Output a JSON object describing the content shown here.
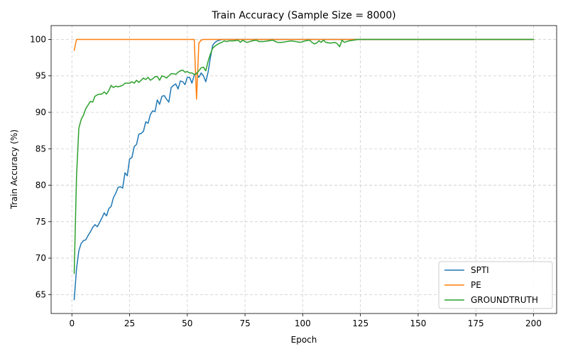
{
  "chart_data": {
    "type": "line",
    "title": "Train Accuracy (Sample Size = 8000)",
    "xlabel": "Epoch",
    "ylabel": "Train Accuracy (%)",
    "xlim": [
      -9,
      210
    ],
    "ylim": [
      62.4,
      101.9
    ],
    "xticks": [
      0,
      25,
      50,
      75,
      100,
      125,
      150,
      175,
      200
    ],
    "yticks": [
      65,
      70,
      75,
      80,
      85,
      90,
      95,
      100
    ],
    "grid": true,
    "legend_position": "lower-right",
    "series": [
      {
        "name": "SPTI",
        "color": "#1f77b4",
        "points": [
          [
            1,
            64.3
          ],
          [
            2,
            68.5
          ],
          [
            3,
            71.0
          ],
          [
            4,
            72.0
          ],
          [
            5,
            72.4
          ],
          [
            6,
            72.5
          ],
          [
            7,
            73.1
          ],
          [
            8,
            73.6
          ],
          [
            9,
            74.2
          ],
          [
            10,
            74.6
          ],
          [
            11,
            74.3
          ],
          [
            12,
            74.9
          ],
          [
            13,
            75.5
          ],
          [
            14,
            76.2
          ],
          [
            15,
            75.8
          ],
          [
            16,
            76.8
          ],
          [
            17,
            77.1
          ],
          [
            18,
            78.3
          ],
          [
            19,
            78.9
          ],
          [
            20,
            79.7
          ],
          [
            21,
            79.8
          ],
          [
            22,
            79.6
          ],
          [
            23,
            81.7
          ],
          [
            24,
            81.3
          ],
          [
            25,
            83.6
          ],
          [
            26,
            83.8
          ],
          [
            27,
            85.3
          ],
          [
            28,
            85.6
          ],
          [
            29,
            87.0
          ],
          [
            30,
            87.1
          ],
          [
            31,
            87.4
          ],
          [
            32,
            88.7
          ],
          [
            33,
            88.5
          ],
          [
            34,
            89.7
          ],
          [
            35,
            90.2
          ],
          [
            36,
            90.1
          ],
          [
            37,
            91.7
          ],
          [
            38,
            91.1
          ],
          [
            39,
            92.2
          ],
          [
            40,
            92.3
          ],
          [
            41,
            91.8
          ],
          [
            42,
            91.4
          ],
          [
            43,
            93.4
          ],
          [
            44,
            93.7
          ],
          [
            45,
            93.9
          ],
          [
            46,
            93.2
          ],
          [
            47,
            94.3
          ],
          [
            48,
            94.2
          ],
          [
            49,
            93.8
          ],
          [
            50,
            94.8
          ],
          [
            51,
            94.8
          ],
          [
            52,
            94.0
          ],
          [
            53,
            95.1
          ],
          [
            54,
            95.4
          ],
          [
            55,
            94.8
          ],
          [
            56,
            95.4
          ],
          [
            57,
            95.0
          ],
          [
            58,
            94.2
          ],
          [
            59,
            95.5
          ],
          [
            60,
            97.5
          ],
          [
            61,
            99.2
          ],
          [
            62,
            99.6
          ],
          [
            63,
            99.8
          ],
          [
            64,
            99.9
          ],
          [
            65,
            100.0
          ],
          [
            70,
            100.0
          ],
          [
            80,
            100.0
          ],
          [
            90,
            100.0
          ],
          [
            100,
            100.0
          ],
          [
            110,
            100.0
          ],
          [
            120,
            100.0
          ],
          [
            130,
            100.0
          ],
          [
            140,
            100.0
          ],
          [
            150,
            100.0
          ],
          [
            160,
            100.0
          ],
          [
            170,
            100.0
          ],
          [
            180,
            100.0
          ],
          [
            190,
            100.0
          ],
          [
            200,
            100.0
          ]
        ]
      },
      {
        "name": "PE",
        "color": "#ff7f0e",
        "points": [
          [
            1,
            98.5
          ],
          [
            2,
            100.0
          ],
          [
            10,
            100.0
          ],
          [
            20,
            100.0
          ],
          [
            30,
            100.0
          ],
          [
            40,
            100.0
          ],
          [
            50,
            100.0
          ],
          [
            53,
            100.0
          ],
          [
            54,
            91.8
          ],
          [
            55,
            99.5
          ],
          [
            56,
            99.9
          ],
          [
            57,
            100.0
          ],
          [
            60,
            100.0
          ],
          [
            70,
            100.0
          ],
          [
            80,
            100.0
          ],
          [
            90,
            100.0
          ],
          [
            100,
            100.0
          ],
          [
            110,
            100.0
          ],
          [
            120,
            100.0
          ],
          [
            130,
            100.0
          ],
          [
            140,
            100.0
          ],
          [
            150,
            100.0
          ],
          [
            160,
            100.0
          ],
          [
            170,
            100.0
          ],
          [
            180,
            100.0
          ],
          [
            190,
            100.0
          ],
          [
            200,
            100.0
          ]
        ]
      },
      {
        "name": "GROUNDTRUTH",
        "color": "#2ca02c",
        "points": [
          [
            1,
            67.9
          ],
          [
            2,
            81.2
          ],
          [
            3,
            87.8
          ],
          [
            4,
            89.0
          ],
          [
            5,
            89.6
          ],
          [
            6,
            90.5
          ],
          [
            7,
            91.0
          ],
          [
            8,
            91.5
          ],
          [
            9,
            91.4
          ],
          [
            10,
            92.2
          ],
          [
            11,
            92.4
          ],
          [
            12,
            92.5
          ],
          [
            13,
            92.5
          ],
          [
            14,
            92.8
          ],
          [
            15,
            92.5
          ],
          [
            16,
            93.0
          ],
          [
            17,
            93.7
          ],
          [
            18,
            93.4
          ],
          [
            19,
            93.6
          ],
          [
            20,
            93.5
          ],
          [
            21,
            93.6
          ],
          [
            22,
            93.7
          ],
          [
            23,
            94.0
          ],
          [
            24,
            94.0
          ],
          [
            25,
            94.0
          ],
          [
            26,
            94.2
          ],
          [
            27,
            94.0
          ],
          [
            28,
            94.4
          ],
          [
            29,
            94.1
          ],
          [
            30,
            94.4
          ],
          [
            31,
            94.7
          ],
          [
            32,
            94.5
          ],
          [
            33,
            94.8
          ],
          [
            34,
            94.4
          ],
          [
            35,
            94.6
          ],
          [
            36,
            94.9
          ],
          [
            37,
            94.9
          ],
          [
            38,
            94.4
          ],
          [
            39,
            95.0
          ],
          [
            40,
            94.9
          ],
          [
            41,
            94.7
          ],
          [
            42,
            95.0
          ],
          [
            43,
            95.3
          ],
          [
            44,
            95.3
          ],
          [
            45,
            95.2
          ],
          [
            46,
            95.5
          ],
          [
            47,
            95.7
          ],
          [
            48,
            95.8
          ],
          [
            49,
            95.5
          ],
          [
            50,
            95.6
          ],
          [
            51,
            95.4
          ],
          [
            52,
            95.4
          ],
          [
            53,
            95.2
          ],
          [
            54,
            95.3
          ],
          [
            55,
            95.7
          ],
          [
            56,
            96.1
          ],
          [
            57,
            96.2
          ],
          [
            58,
            95.7
          ],
          [
            59,
            97.0
          ],
          [
            60,
            98.0
          ],
          [
            61,
            98.8
          ],
          [
            62,
            99.1
          ],
          [
            63,
            99.3
          ],
          [
            64,
            99.5
          ],
          [
            65,
            99.6
          ],
          [
            66,
            99.8
          ],
          [
            67,
            99.7
          ],
          [
            68,
            99.8
          ],
          [
            70,
            99.8
          ],
          [
            72,
            99.9
          ],
          [
            73,
            99.6
          ],
          [
            74,
            99.9
          ],
          [
            75,
            99.7
          ],
          [
            76,
            99.6
          ],
          [
            78,
            99.8
          ],
          [
            80,
            99.9
          ],
          [
            81,
            99.7
          ],
          [
            83,
            99.7
          ],
          [
            85,
            99.8
          ],
          [
            87,
            99.9
          ],
          [
            89,
            99.6
          ],
          [
            91,
            99.6
          ],
          [
            93,
            99.7
          ],
          [
            95,
            99.8
          ],
          [
            97,
            99.7
          ],
          [
            99,
            99.6
          ],
          [
            101,
            99.8
          ],
          [
            103,
            99.9
          ],
          [
            104,
            99.6
          ],
          [
            105,
            99.4
          ],
          [
            106,
            99.5
          ],
          [
            107,
            99.8
          ],
          [
            108,
            99.6
          ],
          [
            109,
            99.9
          ],
          [
            110,
            99.6
          ],
          [
            112,
            99.5
          ],
          [
            114,
            99.6
          ],
          [
            115,
            99.4
          ],
          [
            116,
            99.0
          ],
          [
            117,
            99.9
          ],
          [
            118,
            99.6
          ],
          [
            120,
            99.8
          ],
          [
            122,
            99.9
          ],
          [
            124,
            100.0
          ],
          [
            130,
            100.0
          ],
          [
            140,
            100.0
          ],
          [
            150,
            100.0
          ],
          [
            160,
            100.0
          ],
          [
            170,
            100.0
          ],
          [
            180,
            100.0
          ],
          [
            190,
            100.0
          ],
          [
            200,
            100.0
          ]
        ]
      }
    ]
  }
}
